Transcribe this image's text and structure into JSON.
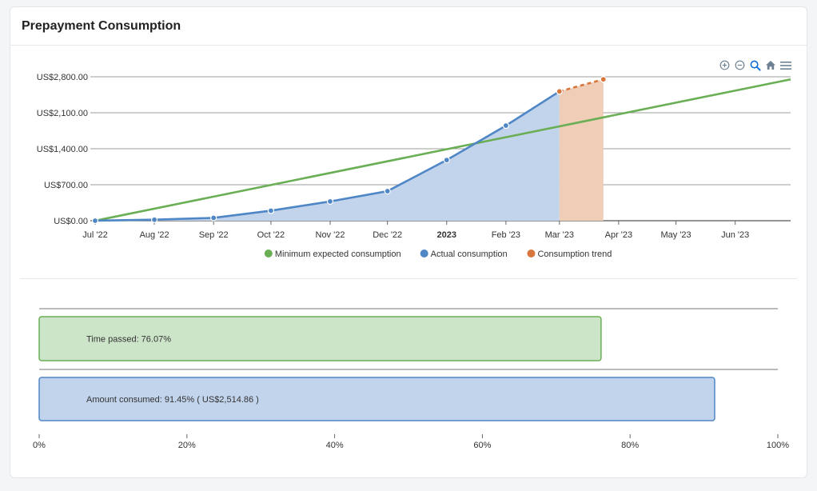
{
  "header": {
    "title": "Prepayment Consumption"
  },
  "toolbar": {
    "items": [
      "zoom-in-icon",
      "zoom-out-icon",
      "zoom-select-icon",
      "home-icon",
      "menu-icon"
    ]
  },
  "colors": {
    "expected": "#6aaf56",
    "actual": "#4f86c6",
    "actual_fill": "#c2d3ec",
    "trend": "#d8773d",
    "trend_fill": "#f0cdb6",
    "time_fill": "#cce5c8",
    "time_border": "#6aaf56",
    "amount_fill": "#c2d3ec",
    "amount_border": "#4f86c6"
  },
  "chart_data": [
    {
      "type": "line",
      "x_tick_labels": [
        "Jul '22",
        "Aug '22",
        "Sep '22",
        "Oct '22",
        "Nov '22",
        "Dec '22",
        "2023",
        "Feb '23",
        "Mar '23",
        "Apr '23",
        "May '23",
        "Jun '23"
      ],
      "y_tick_labels": [
        "US$0.00",
        "US$700.00",
        "US$1,400.00",
        "US$2,100.00",
        "US$2,800.00"
      ],
      "y_ticks": [
        0,
        700,
        1400,
        2100,
        2800
      ],
      "ylim": [
        0,
        2800
      ],
      "xlim": [
        "2022-07-01",
        "2023-06-30"
      ],
      "grid": true,
      "legend_position": "bottom",
      "series": [
        {
          "name": "Minimum expected consumption",
          "points": [
            [
              "2022-07-01",
              0
            ],
            [
              "2023-06-30",
              2750
            ]
          ]
        },
        {
          "name": "Actual consumption",
          "points": [
            [
              "2022-07-01",
              0
            ],
            [
              "2022-08-01",
              20
            ],
            [
              "2022-09-01",
              55
            ],
            [
              "2022-10-01",
              195
            ],
            [
              "2022-11-01",
              375
            ],
            [
              "2022-12-01",
              575
            ],
            [
              "2023-01-01",
              1180
            ],
            [
              "2023-02-01",
              1850
            ],
            [
              "2023-03-01",
              2514.86
            ]
          ]
        },
        {
          "name": "Consumption trend",
          "points": [
            [
              "2023-03-01",
              2514.86
            ],
            [
              "2023-03-24",
              2750
            ]
          ]
        }
      ]
    },
    {
      "type": "bar",
      "orientation": "horizontal",
      "categories": [
        "Time passed",
        "Amount consumed"
      ],
      "values": [
        76.07,
        91.45
      ],
      "unit": "%",
      "xlim": [
        0,
        100
      ],
      "x_tick_labels": [
        "0%",
        "20%",
        "40%",
        "60%",
        "80%",
        "100%"
      ],
      "labels": [
        "Time passed: 76.07%",
        "Amount consumed: 91.45% ( US$2,514.86 )"
      ]
    }
  ]
}
